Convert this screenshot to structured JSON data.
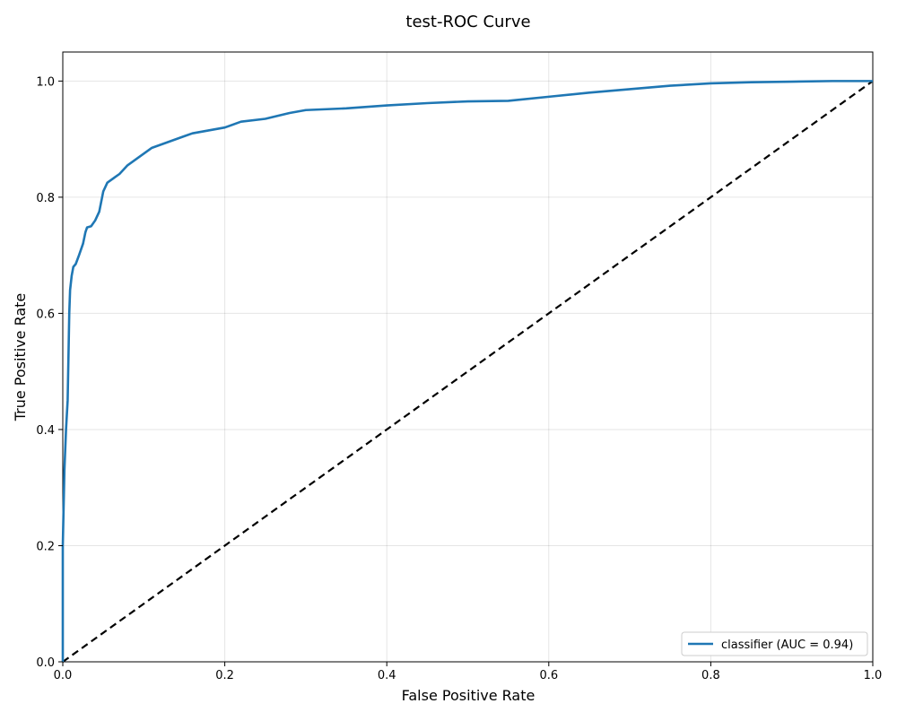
{
  "chart_data": {
    "type": "line",
    "title": "test-ROC Curve",
    "xlabel": "False Positive Rate",
    "ylabel": "True Positive Rate",
    "xlim": [
      0.0,
      1.0
    ],
    "ylim": [
      0.0,
      1.05
    ],
    "xticks": [
      0.0,
      0.2,
      0.4,
      0.6,
      0.8,
      1.0
    ],
    "yticks": [
      0.0,
      0.2,
      0.4,
      0.6,
      0.8,
      1.0
    ],
    "xtick_labels": [
      "0.0",
      "0.2",
      "0.4",
      "0.6",
      "0.8",
      "1.0"
    ],
    "ytick_labels": [
      "0.0",
      "0.2",
      "0.4",
      "0.6",
      "0.8",
      "1.0"
    ],
    "grid": true,
    "legend_position": "lower-right",
    "series": [
      {
        "name": "classifier (AUC = 0.94)",
        "color": "#1f77b4",
        "style": "solid",
        "x": [
          0.0,
          0.0,
          0.002,
          0.004,
          0.006,
          0.008,
          0.009,
          0.011,
          0.013,
          0.016,
          0.02,
          0.025,
          0.028,
          0.03,
          0.035,
          0.04,
          0.045,
          0.05,
          0.055,
          0.06,
          0.065,
          0.07,
          0.08,
          0.09,
          0.1,
          0.11,
          0.12,
          0.13,
          0.14,
          0.15,
          0.16,
          0.18,
          0.2,
          0.22,
          0.25,
          0.28,
          0.3,
          0.35,
          0.4,
          0.45,
          0.5,
          0.55,
          0.6,
          0.65,
          0.7,
          0.75,
          0.8,
          0.85,
          0.9,
          0.95,
          1.0
        ],
        "y": [
          0.0,
          0.2,
          0.33,
          0.4,
          0.45,
          0.6,
          0.64,
          0.665,
          0.68,
          0.685,
          0.7,
          0.72,
          0.74,
          0.748,
          0.75,
          0.76,
          0.775,
          0.81,
          0.825,
          0.83,
          0.835,
          0.84,
          0.855,
          0.865,
          0.875,
          0.885,
          0.89,
          0.895,
          0.9,
          0.905,
          0.91,
          0.915,
          0.92,
          0.93,
          0.935,
          0.945,
          0.95,
          0.953,
          0.958,
          0.962,
          0.965,
          0.966,
          0.973,
          0.98,
          0.986,
          0.992,
          0.996,
          0.998,
          0.999,
          1.0,
          1.0
        ]
      },
      {
        "name": "",
        "color": "#000000",
        "style": "dashed",
        "x": [
          0.0,
          1.0
        ],
        "y": [
          0.0,
          1.0
        ]
      }
    ]
  }
}
